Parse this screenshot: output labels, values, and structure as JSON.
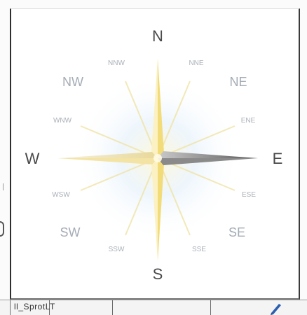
{
  "compass": {
    "cardinal": {
      "north": "N",
      "east": "E",
      "south": "S",
      "west": "W"
    },
    "intercardinal": {
      "northeast": "NE",
      "southeast": "SE",
      "southwest": "SW",
      "northwest": "NW"
    },
    "secondary": {
      "nne": "NNE",
      "ene": "ENE",
      "ese": "ESE",
      "sse": "SSE",
      "ssw": "SSW",
      "wsw": "WSW",
      "wnw": "WNW",
      "nnw": "NNW"
    }
  },
  "bottom_bar": {
    "text": "ll_SprotLT"
  },
  "icons": {
    "compass_rose": "compass-rose-icon",
    "pen": "pen-icon"
  },
  "colors": {
    "star_gold": "#f2dc7a",
    "star_cream": "#fbf3c6",
    "star_glow": "#d9ecf8",
    "east_needle": "#6f6f6f",
    "label_major": "#4a4a4a",
    "label_minor": "#9aa3ad",
    "pen_blue": "#2b5fb0"
  }
}
